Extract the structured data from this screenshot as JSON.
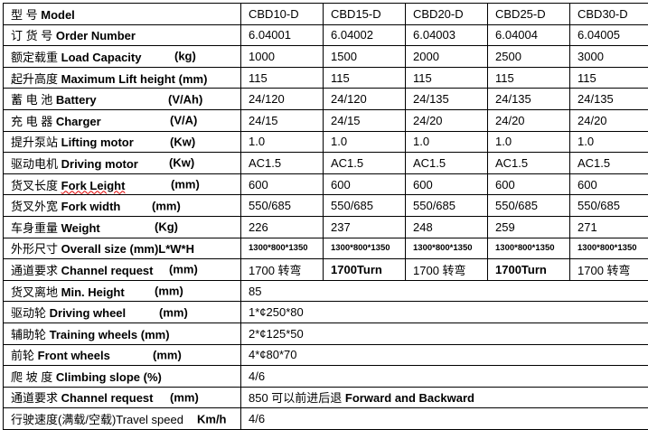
{
  "rows": [
    {
      "cn": "型      号 ",
      "en": "Model",
      "unit": "",
      "values": [
        "CBD10-D",
        "CBD15-D",
        "CBD20-D",
        "CBD25-D",
        "CBD30-D"
      ]
    },
    {
      "cn": "订 货 号 ",
      "en": "Order Number",
      "unit": "",
      "values": [
        "6.04001",
        "6.04002",
        "6.04003",
        "6.04004",
        "6.04005"
      ]
    },
    {
      "cn": "额定载重 ",
      "en": "Load Capacity",
      "unit": "(kg)",
      "values": [
        "1000",
        "1500",
        "2000",
        "2500",
        "3000"
      ]
    },
    {
      "cn": "起升高度 ",
      "en": "Maximum Lift height (mm)",
      "unit": "",
      "values": [
        "115",
        "115",
        "115",
        "115",
        "115"
      ]
    },
    {
      "cn": "蓄 电 池 ",
      "en": "Battery",
      "unit": "(V/Ah)",
      "values": [
        "24/120",
        "24/120",
        "24/135",
        "24/135",
        "24/135"
      ]
    },
    {
      "cn": "充 电 器 ",
      "en": "Charger",
      "unit": "(V/A)",
      "values": [
        "24/15",
        "24/15",
        "24/20",
        "24/20",
        "24/20"
      ]
    },
    {
      "cn": "提升泵站 ",
      "en": "Lifting motor",
      "unit": "(Kw)",
      "values": [
        "1.0",
        "1.0",
        "1.0",
        "1.0",
        "1.0"
      ]
    },
    {
      "cn": "驱动电机 ",
      "en": "Driving motor",
      "unit": "(Kw)",
      "values": [
        "AC1.5",
        "AC1.5",
        "AC1.5",
        "AC1.5",
        "AC1.5"
      ]
    },
    {
      "cn": "货叉长度 ",
      "en": "Fork Leight",
      "unit": "(mm)",
      "values": [
        "600",
        "600",
        "600",
        "600",
        "600"
      ]
    },
    {
      "cn": "货叉外宽 ",
      "en": "Fork width",
      "unit": "(mm)",
      "values": [
        "550/685",
        "550/685",
        "550/685",
        "550/685",
        "550/685"
      ]
    },
    {
      "cn": "车身重量 ",
      "en": "Weight",
      "unit": "(Kg)",
      "values": [
        "226",
        "237",
        "248",
        "259",
        "271"
      ]
    },
    {
      "cn": "外形尺寸 ",
      "en": "Overall size (mm)L*W*H",
      "unit": "",
      "values": [
        "1300*800*1350",
        "1300*800*1350",
        "1300*800*1350",
        "1300*800*1350",
        "1300*800*1350"
      ]
    },
    {
      "cn": "通道要求 ",
      "en": "Channel request",
      "unit": "(mm)",
      "values": [
        "1700 转弯",
        "1700Turn",
        "1700 转弯",
        "1700Turn",
        "1700 转弯"
      ]
    },
    {
      "cn": "货叉离地 ",
      "en": "Min. Height",
      "unit": "(mm)",
      "value": "85"
    },
    {
      "cn": "驱动轮  ",
      "en": "Driving wheel",
      "unit": "(mm)",
      "value": "1*¢250*80"
    },
    {
      "cn": "辅助轮 ",
      "en": "Training wheels (mm)",
      "unit": "",
      "value": "2*¢125*50"
    },
    {
      "cn": "前轮 ",
      "en": "Front wheels",
      "unit": "(mm)",
      "value": "4*¢80*70"
    },
    {
      "cn": "爬  坡  度 ",
      "en": "Climbing slope (%)",
      "unit": "",
      "value": "4/6"
    },
    {
      "cn": "通道要求 ",
      "en": "Channel request",
      "unit": "(mm)",
      "value_cn": "850 可以前进后退 ",
      "value_en": "Forward and Backward"
    },
    {
      "cn": "行驶速度(满载/空载)Travel speed",
      "en": "",
      "unit": "Km/h",
      "value": " 4/6"
    }
  ]
}
